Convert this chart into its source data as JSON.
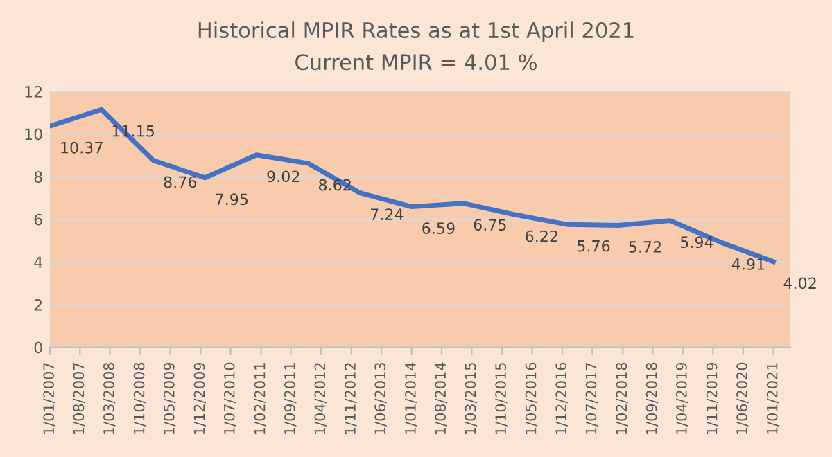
{
  "chart_data": {
    "type": "line",
    "title": "Historical MPIR Rates as at 1st April 2021",
    "subtitle": "Current MPIR = 4.01 %",
    "x": [
      "2007-01-01",
      "2008-01-01",
      "2009-01-01",
      "2010-01-01",
      "2011-01-01",
      "2012-01-01",
      "2013-01-01",
      "2014-01-01",
      "2015-01-01",
      "2016-01-01",
      "2017-01-01",
      "2018-01-01",
      "2019-01-01",
      "2020-01-01",
      "2021-01-01"
    ],
    "series": [
      {
        "color": "#4472c4",
        "values": [
          10.37,
          11.15,
          8.76,
          7.95,
          9.02,
          8.62,
          7.24,
          6.59,
          6.75,
          6.22,
          5.76,
          5.72,
          5.94,
          4.91,
          4.02
        ]
      }
    ],
    "data_labels": true,
    "marker": "none",
    "line_style": "solid",
    "grid": "y",
    "xlim": [
      "2007-01-01",
      "2021-05-01"
    ],
    "xticks": [
      {
        "value": "2007-01-01",
        "label": "1/01/2007"
      },
      {
        "value": "2007-08-01",
        "label": "1/08/2007"
      },
      {
        "value": "2008-03-01",
        "label": "1/03/2008"
      },
      {
        "value": "2008-10-01",
        "label": "1/10/2008"
      },
      {
        "value": "2009-05-01",
        "label": "1/05/2009"
      },
      {
        "value": "2009-12-01",
        "label": "1/12/2009"
      },
      {
        "value": "2010-07-01",
        "label": "1/07/2010"
      },
      {
        "value": "2011-02-01",
        "label": "1/02/2011"
      },
      {
        "value": "2011-09-01",
        "label": "1/09/2011"
      },
      {
        "value": "2012-04-01",
        "label": "1/04/2012"
      },
      {
        "value": "2012-11-01",
        "label": "1/11/2012"
      },
      {
        "value": "2013-06-01",
        "label": "1/06/2013"
      },
      {
        "value": "2014-01-01",
        "label": "1/01/2014"
      },
      {
        "value": "2014-08-01",
        "label": "1/08/2014"
      },
      {
        "value": "2015-03-01",
        "label": "1/03/2015"
      },
      {
        "value": "2015-10-01",
        "label": "1/10/2015"
      },
      {
        "value": "2016-05-01",
        "label": "1/05/2016"
      },
      {
        "value": "2016-12-01",
        "label": "1/12/2016"
      },
      {
        "value": "2017-07-01",
        "label": "1/07/2017"
      },
      {
        "value": "2018-02-01",
        "label": "1/02/2018"
      },
      {
        "value": "2018-09-01",
        "label": "1/09/2018"
      },
      {
        "value": "2019-04-01",
        "label": "1/04/2019"
      },
      {
        "value": "2019-11-01",
        "label": "1/11/2019"
      },
      {
        "value": "2020-06-01",
        "label": "1/06/2020"
      },
      {
        "value": "2021-01-01",
        "label": "1/01/2021"
      }
    ],
    "ylim": [
      0,
      12
    ],
    "yticks": [
      0,
      2,
      4,
      6,
      8,
      10,
      12
    ]
  }
}
